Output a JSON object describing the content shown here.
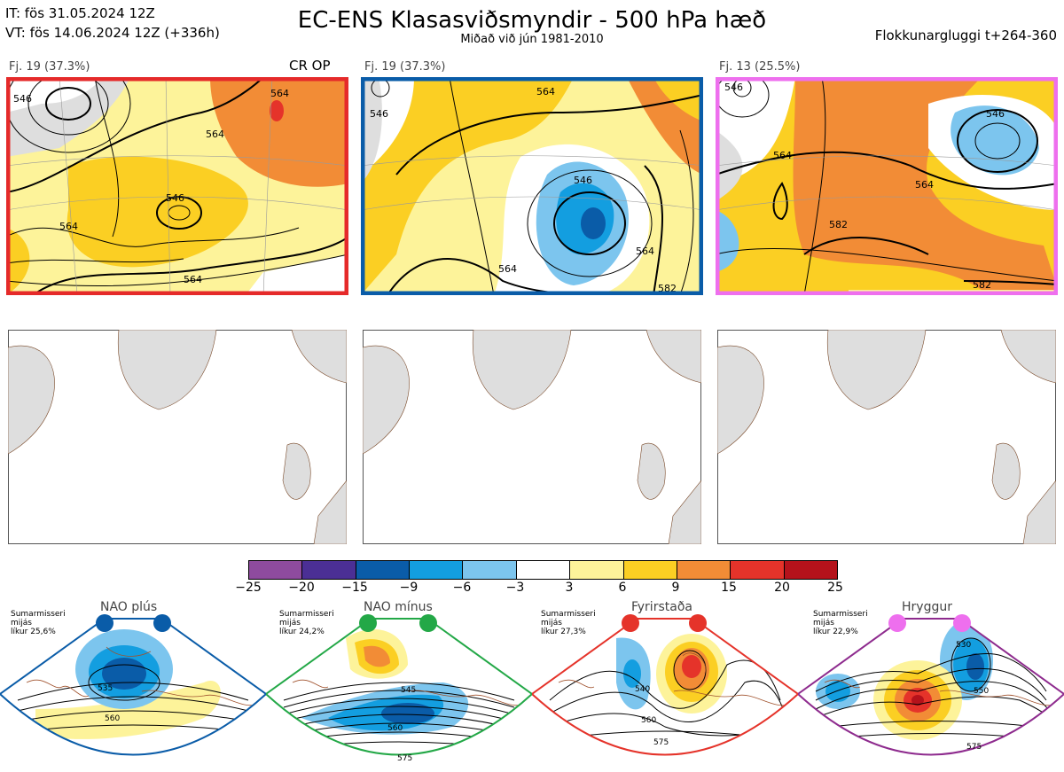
{
  "header": {
    "it_line": "IT: fös 31.05.2024 12Z",
    "vt_line": "VT: fös 14.06.2024 12Z  (+336h)",
    "title": "EC-ENS Klasasviðsmyndir - 500 hPa hæð",
    "subtitle": "Miðað við jún 1981-2010",
    "window": "Flokkunargluggi t+264-360"
  },
  "panels": [
    {
      "label": "Fj. 19 (37.3%)",
      "tag": "CR OP",
      "border": "#e52a2a"
    },
    {
      "label": "Fj. 19 (37.3%)",
      "tag": "",
      "border": "#0a5ca8"
    },
    {
      "label": "Fj. 13 (25.5%)",
      "tag": "",
      "border": "#ee6fee"
    }
  ],
  "contour_labels": {
    "p1": [
      "546",
      "564",
      "564",
      "564",
      "546",
      "564"
    ],
    "p2": [
      "546",
      "564",
      "546",
      "564",
      "564",
      "582"
    ],
    "p3": [
      "546",
      "564",
      "564",
      "582",
      "582",
      "546"
    ]
  },
  "colorbar": {
    "ticks": [
      "−25",
      "−20",
      "−15",
      "−9",
      "−6",
      "−3",
      "3",
      "6",
      "9",
      "15",
      "20",
      "25"
    ],
    "colors": [
      "#8e4b9e",
      "#4b2f95",
      "#0a5ca8",
      "#139ee0",
      "#7cc5ee",
      "#ffffff",
      "#fdf39a",
      "#fbcf23",
      "#f28c36",
      "#e5332a",
      "#b5121b"
    ]
  },
  "regimes": [
    {
      "name": "NAO plús",
      "info": [
        "Sumarmisseri",
        "mijás",
        "líkur 25,6%"
      ],
      "color": "#0a5ca8",
      "labels": [
        "535",
        "560"
      ]
    },
    {
      "name": "NAO mínus",
      "info": [
        "Sumarmisseri",
        "mijás",
        "líkur 24,2%"
      ],
      "color": "#23a847",
      "labels": [
        "545",
        "560",
        "575"
      ]
    },
    {
      "name": "Fyrirstaða",
      "info": [
        "Sumarmisseri",
        "mijás",
        "líkur 27,3%"
      ],
      "color": "#e5332a",
      "labels": [
        "540",
        "560",
        "575"
      ]
    },
    {
      "name": "Hryggur",
      "info": [
        "Sumarmisseri",
        "mijás",
        "líkur 22,9%"
      ],
      "color": "#ee6fee",
      "labels": [
        "530",
        "550",
        "575"
      ]
    }
  ]
}
